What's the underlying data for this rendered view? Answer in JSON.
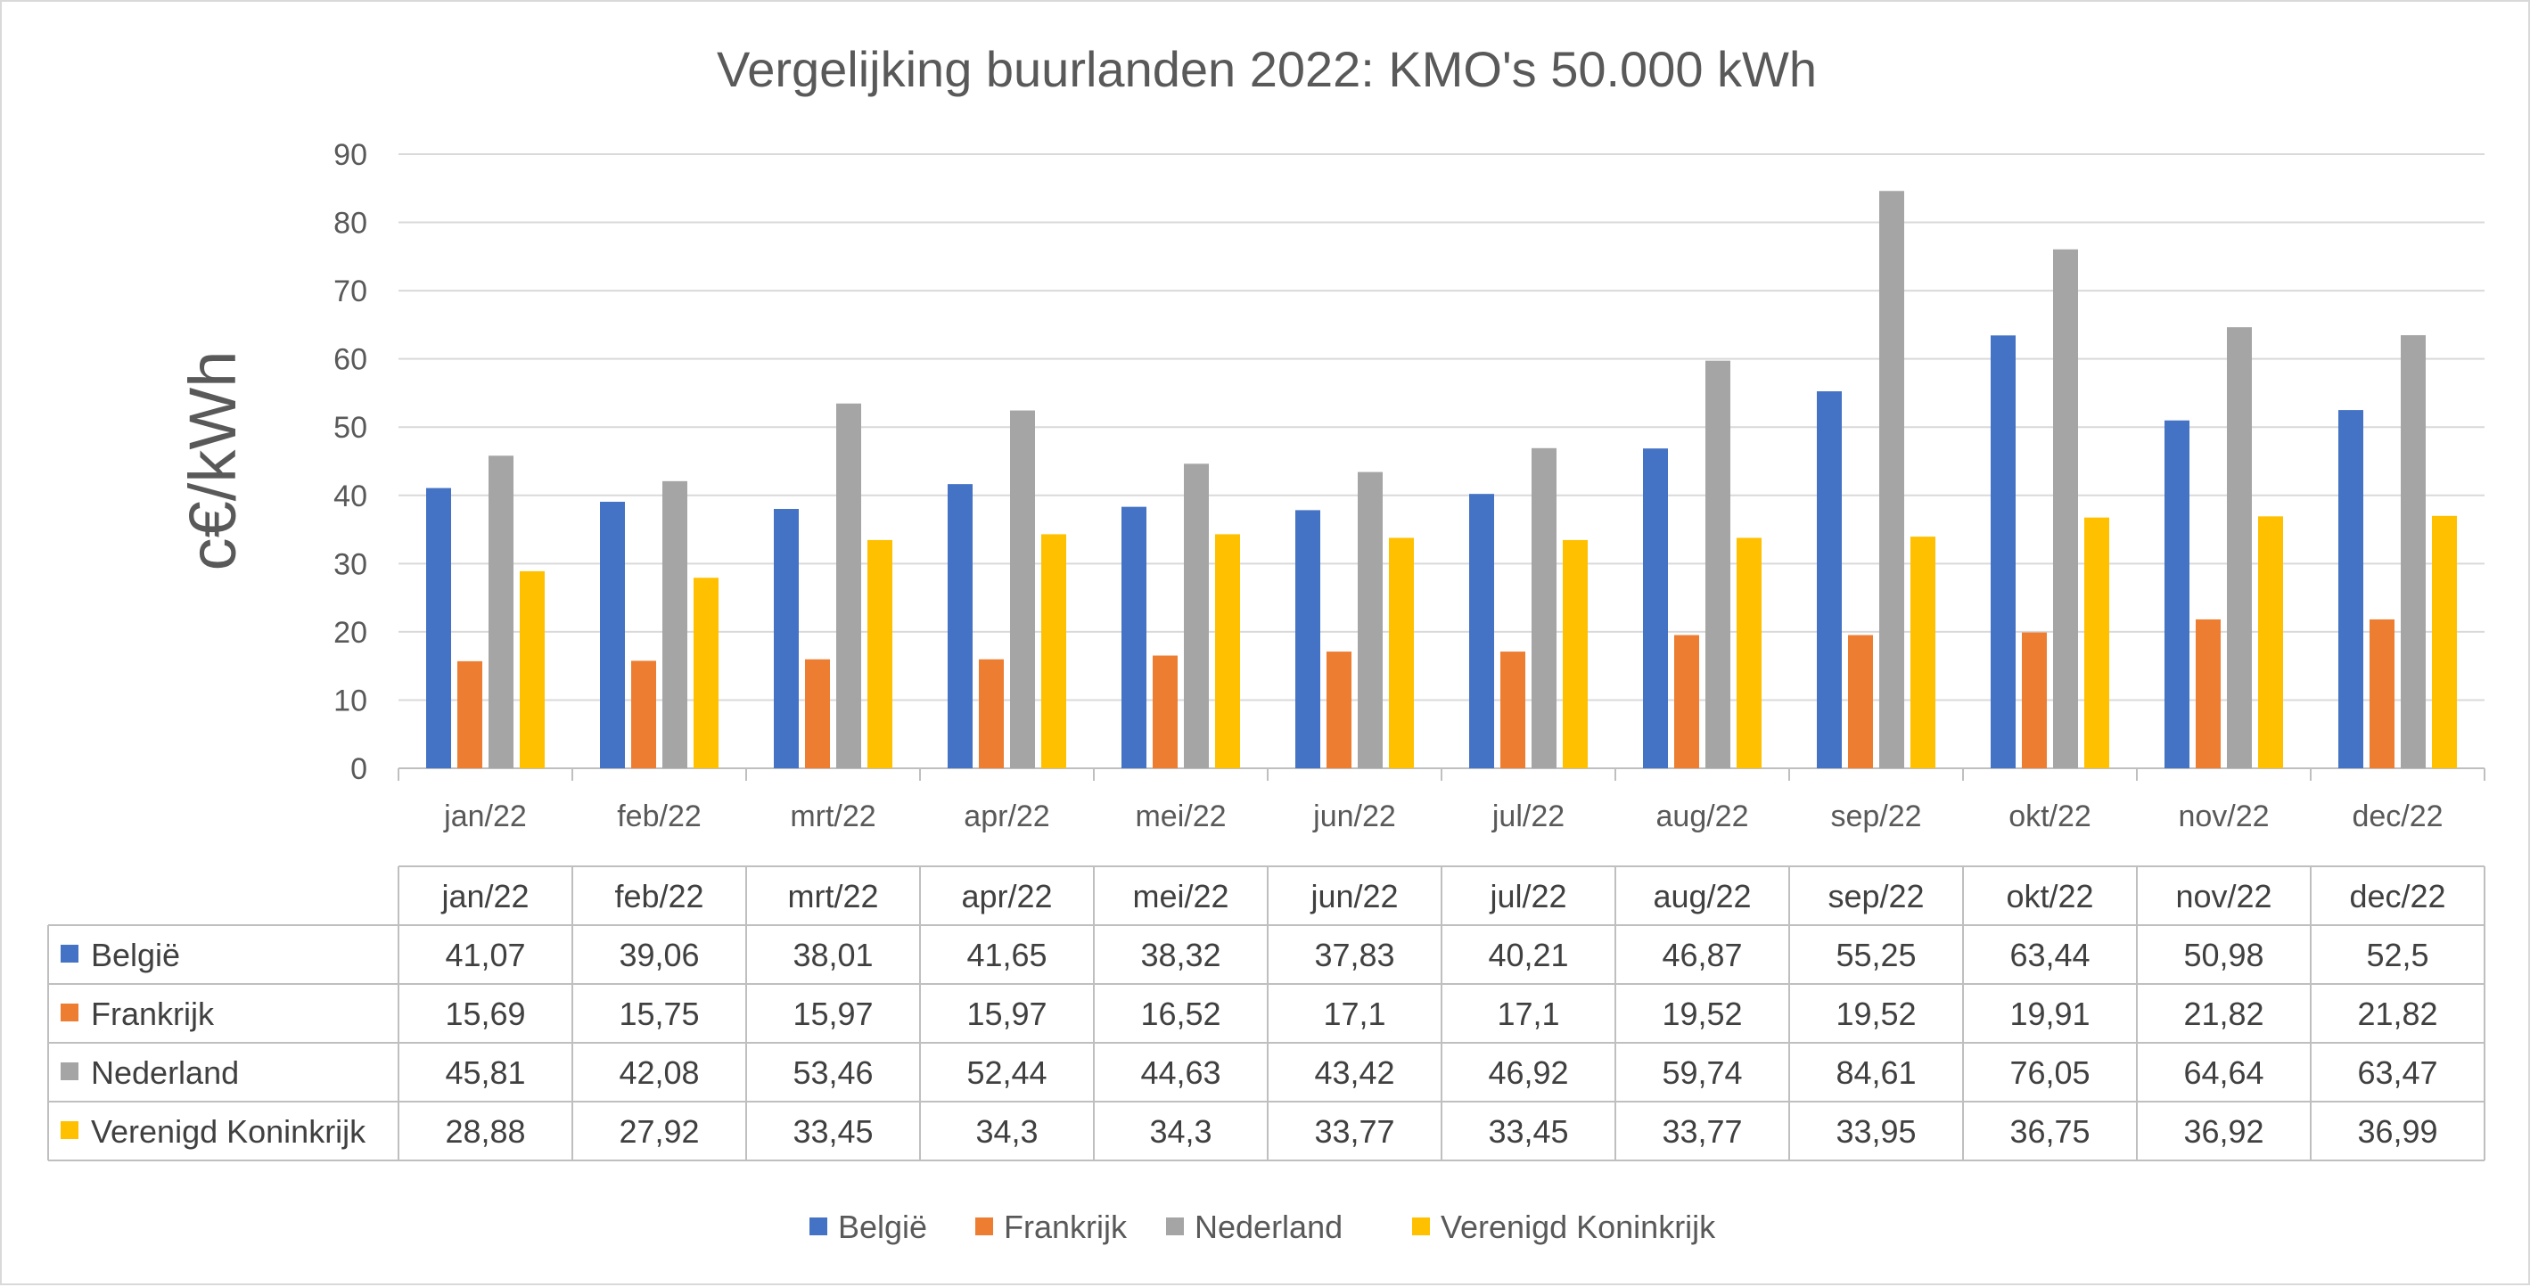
{
  "chart_data": {
    "type": "bar",
    "title": "Vergelijking buurlanden 2022: KMO's 50.000 kWh",
    "xlabel": "",
    "ylabel": "c€/kWh",
    "ylim": [
      0,
      90
    ],
    "yticks": [
      0,
      10,
      20,
      30,
      40,
      50,
      60,
      70,
      80,
      90
    ],
    "grid": true,
    "legend_position": "bottom",
    "data_table": true,
    "categories": [
      "jan/22",
      "feb/22",
      "mrt/22",
      "apr/22",
      "mei/22",
      "jun/22",
      "jul/22",
      "aug/22",
      "sep/22",
      "okt/22",
      "nov/22",
      "dec/22"
    ],
    "series": [
      {
        "name": "België",
        "color": "#4472c4",
        "values": [
          41.07,
          39.06,
          38.01,
          41.65,
          38.32,
          37.83,
          40.21,
          46.87,
          55.25,
          63.44,
          50.98,
          52.5
        ],
        "labels": [
          "41,07",
          "39,06",
          "38,01",
          "41,65",
          "38,32",
          "37,83",
          "40,21",
          "46,87",
          "55,25",
          "63,44",
          "50,98",
          "52,5"
        ]
      },
      {
        "name": "Frankrijk",
        "color": "#ed7d31",
        "values": [
          15.69,
          15.75,
          15.97,
          15.97,
          16.52,
          17.1,
          17.1,
          19.52,
          19.52,
          19.91,
          21.82,
          21.82
        ],
        "labels": [
          "15,69",
          "15,75",
          "15,97",
          "15,97",
          "16,52",
          "17,1",
          "17,1",
          "19,52",
          "19,52",
          "19,91",
          "21,82",
          "21,82"
        ]
      },
      {
        "name": "Nederland",
        "color": "#a5a5a5",
        "values": [
          45.81,
          42.08,
          53.46,
          52.44,
          44.63,
          43.42,
          46.92,
          59.74,
          84.61,
          76.05,
          64.64,
          63.47
        ],
        "labels": [
          "45,81",
          "42,08",
          "53,46",
          "52,44",
          "44,63",
          "43,42",
          "46,92",
          "59,74",
          "84,61",
          "76,05",
          "64,64",
          "63,47"
        ]
      },
      {
        "name": "Verenigd Koninkrijk",
        "color": "#ffc000",
        "values": [
          28.88,
          27.92,
          33.45,
          34.3,
          34.3,
          33.77,
          33.45,
          33.77,
          33.95,
          36.75,
          36.92,
          36.99
        ],
        "labels": [
          "28,88",
          "27,92",
          "33,45",
          "34,3",
          "34,3",
          "33,77",
          "33,45",
          "33,77",
          "33,95",
          "36,75",
          "36,92",
          "36,99"
        ]
      }
    ]
  }
}
